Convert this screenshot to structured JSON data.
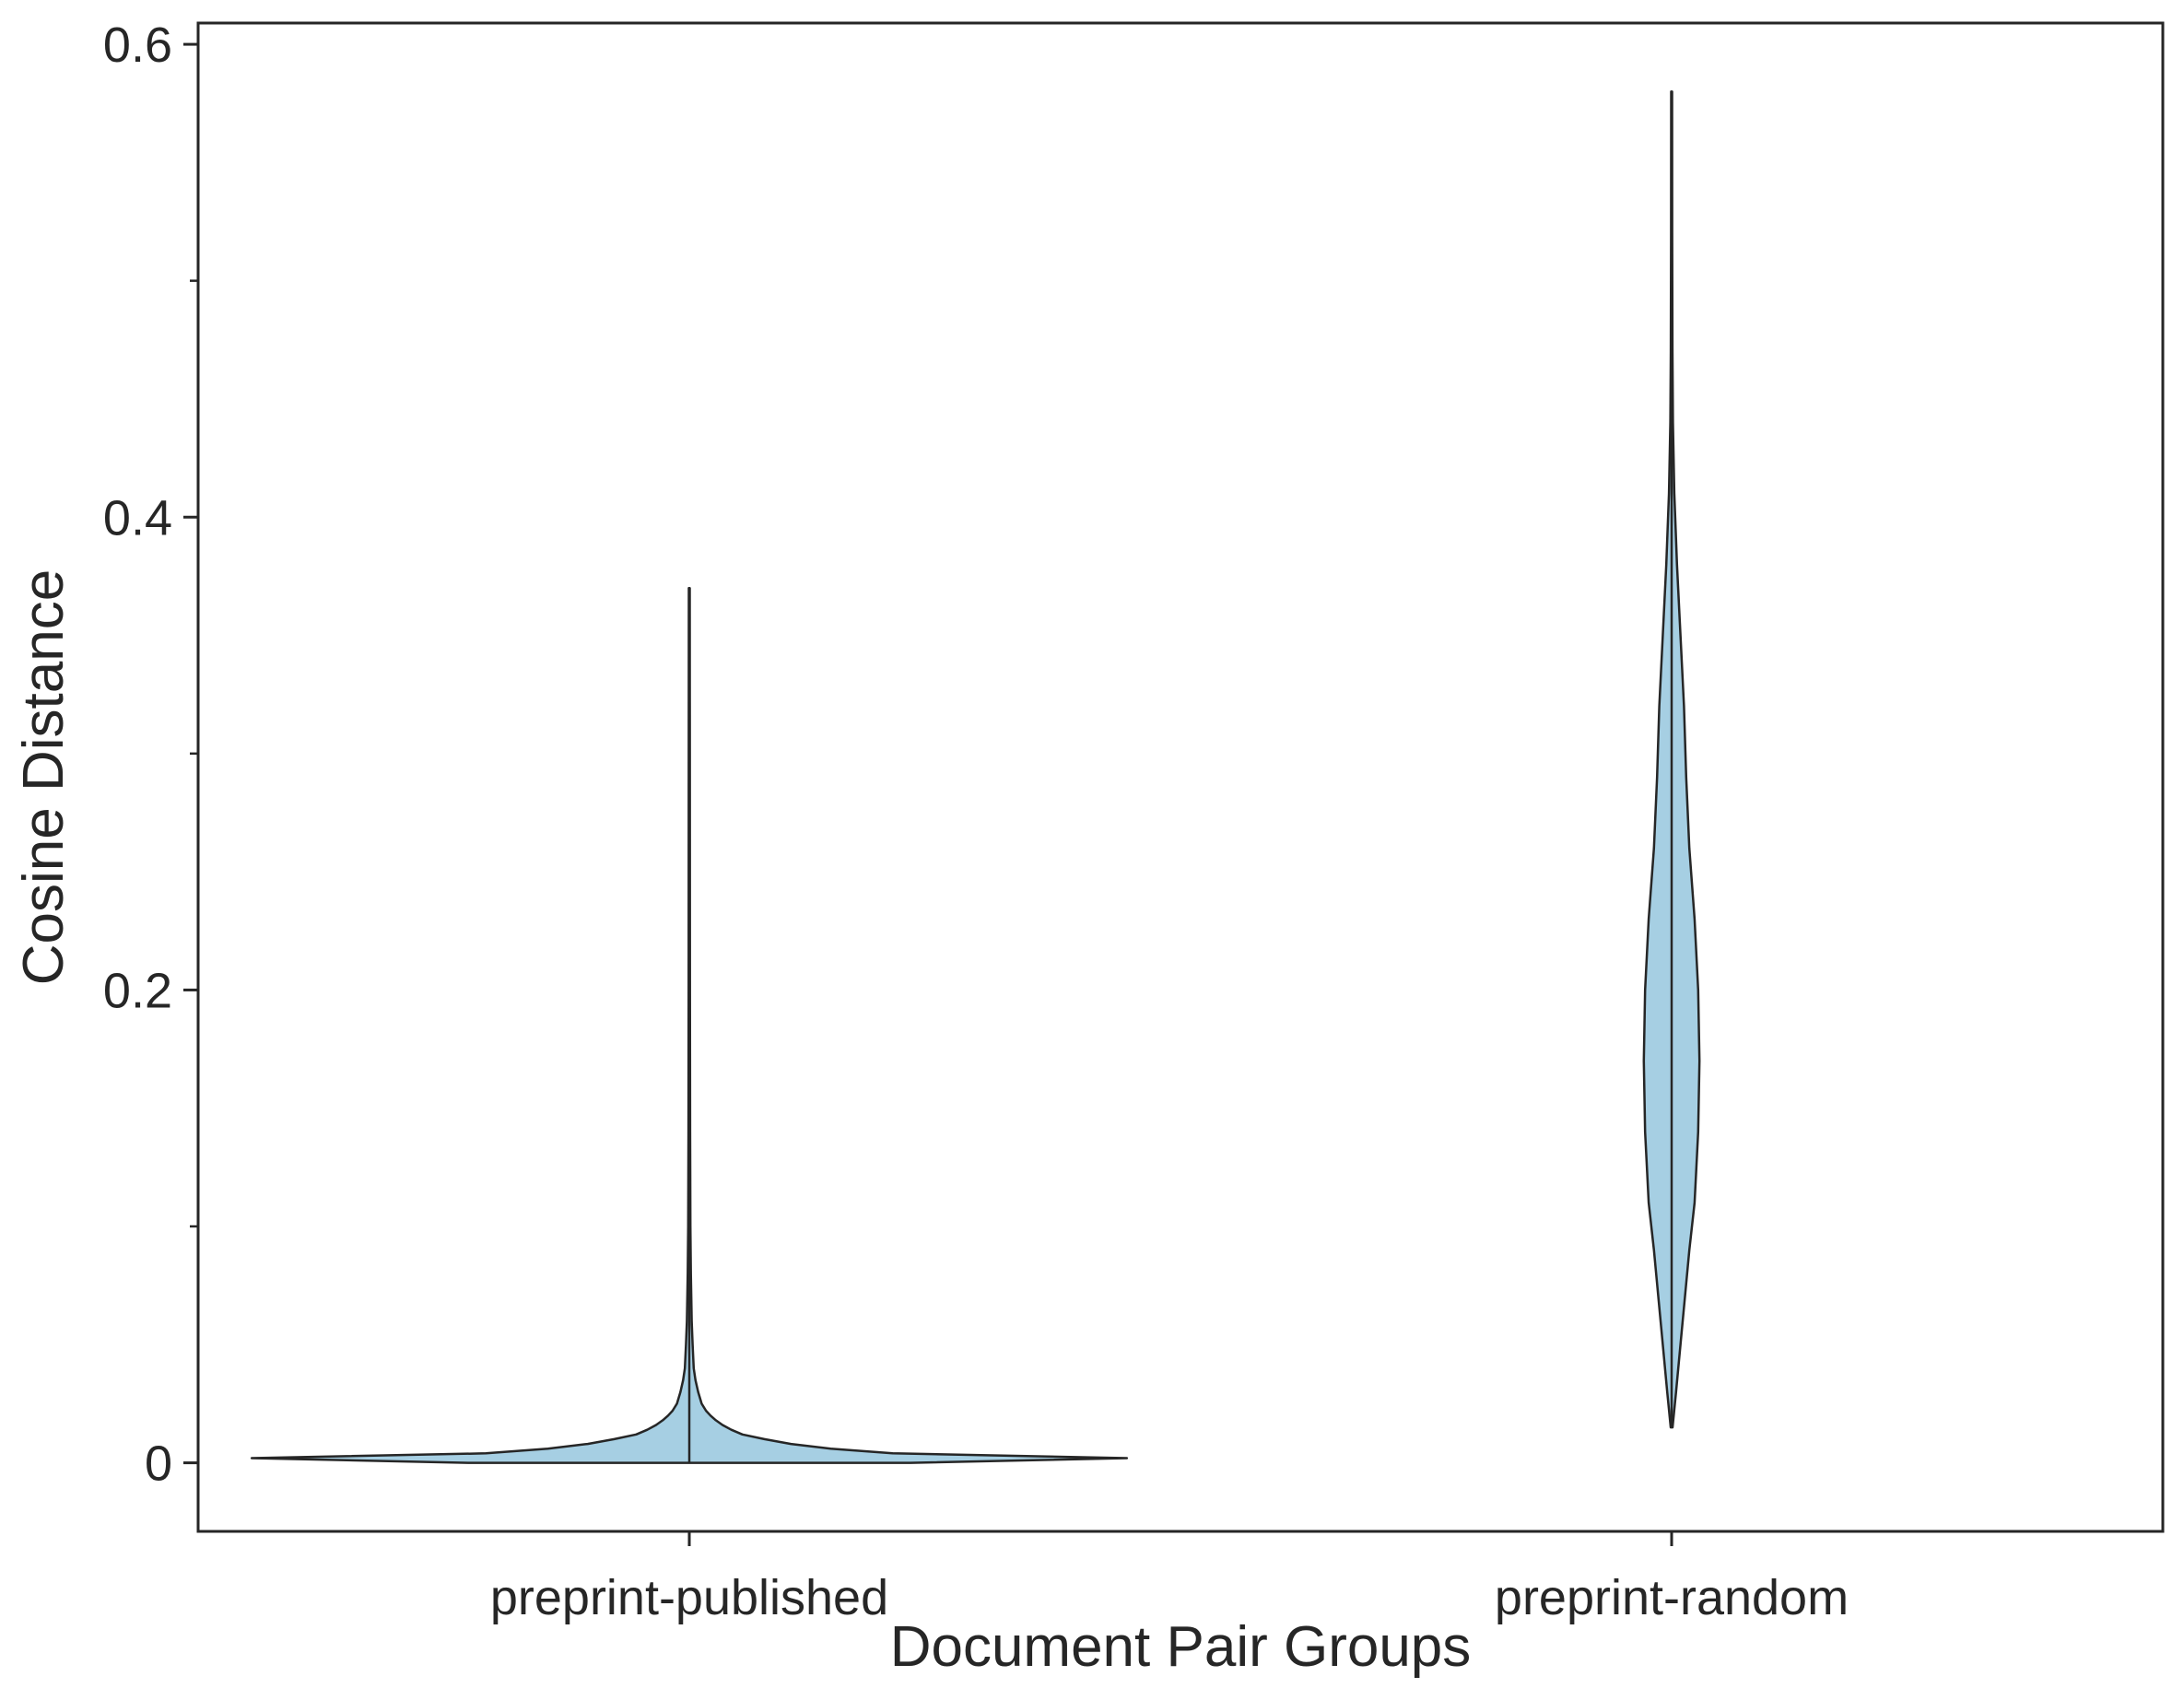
{
  "chart_data": {
    "type": "violin",
    "title": "",
    "xlabel": "Document Pair Groups",
    "ylabel": "Cosine Distance",
    "categories": [
      "preprint-published",
      "preprint-random"
    ],
    "ylim": [
      -0.029,
      0.609
    ],
    "yticks": [
      0,
      0.2,
      0.4,
      0.6
    ],
    "ytick_labels": [
      "0",
      "0.2",
      "0.4",
      "0.6"
    ],
    "yminor_ticks": [
      0.1,
      0.3,
      0.5
    ],
    "fill_color": "#a6cfe3",
    "edge_color": "#262626",
    "grid": false,
    "violins": [
      {
        "category": "preprint-published",
        "y_min": 0.0,
        "y_max": 0.37,
        "profile": [
          [
            0.0,
            0.5
          ],
          [
            0.002,
            0.99
          ],
          [
            0.004,
            0.46
          ],
          [
            0.006,
            0.32
          ],
          [
            0.008,
            0.23
          ],
          [
            0.01,
            0.17
          ],
          [
            0.012,
            0.12
          ],
          [
            0.014,
            0.095
          ],
          [
            0.016,
            0.075
          ],
          [
            0.018,
            0.06
          ],
          [
            0.02,
            0.048
          ],
          [
            0.022,
            0.038
          ],
          [
            0.025,
            0.028
          ],
          [
            0.03,
            0.02
          ],
          [
            0.035,
            0.014
          ],
          [
            0.04,
            0.01
          ],
          [
            0.05,
            0.0075
          ],
          [
            0.06,
            0.0055
          ],
          [
            0.08,
            0.0035
          ],
          [
            0.1,
            0.0025
          ],
          [
            0.14,
            0.0018
          ],
          [
            0.2,
            0.0014
          ],
          [
            0.3,
            0.0012
          ],
          [
            0.37,
            0.001
          ]
        ]
      },
      {
        "category": "preprint-random",
        "y_min": 0.015,
        "y_max": 0.58,
        "profile": [
          [
            0.015,
            0.002
          ],
          [
            0.03,
            0.01
          ],
          [
            0.05,
            0.02
          ],
          [
            0.07,
            0.03
          ],
          [
            0.09,
            0.04
          ],
          [
            0.11,
            0.052
          ],
          [
            0.14,
            0.06
          ],
          [
            0.17,
            0.063
          ],
          [
            0.2,
            0.06
          ],
          [
            0.23,
            0.052
          ],
          [
            0.26,
            0.04
          ],
          [
            0.29,
            0.033
          ],
          [
            0.32,
            0.028
          ],
          [
            0.35,
            0.02
          ],
          [
            0.38,
            0.012
          ],
          [
            0.41,
            0.006
          ],
          [
            0.44,
            0.003
          ],
          [
            0.47,
            0.0018
          ],
          [
            0.52,
            0.0012
          ],
          [
            0.58,
            0.001
          ]
        ]
      }
    ]
  }
}
